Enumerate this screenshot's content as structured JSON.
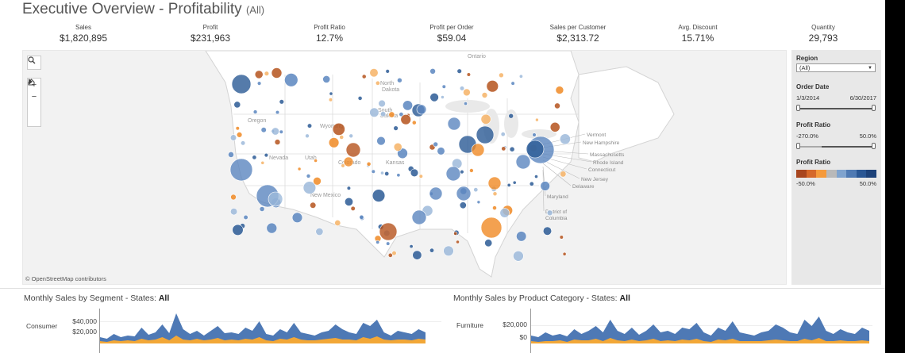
{
  "header": {
    "title": "Executive Overview - Profitability",
    "filter_tag": "(All)"
  },
  "kpis": [
    {
      "label": "Sales",
      "value": "$1,820,895"
    },
    {
      "label": "Profit",
      "value": "$231,963"
    },
    {
      "label": "Profit Ratio",
      "value": "12.7%"
    },
    {
      "label": "Profit per Order",
      "value": "$59.04"
    },
    {
      "label": "Sales per Customer",
      "value": "$2,313.72"
    },
    {
      "label": "Avg. Discount",
      "value": "15.71%"
    },
    {
      "label": "Quantity",
      "value": "29,793"
    }
  ],
  "map": {
    "attribution": "© OpenStreetMap contributors",
    "controls": [
      "search-icon",
      "zoom-in-icon",
      "zoom-out-icon",
      "home-icon",
      "play-icon"
    ],
    "state_labels": [
      "North Dakota",
      "South Dakota",
      "Oregon",
      "Wyoming",
      "Nevada",
      "Utah",
      "Colorado",
      "Kansas",
      "New Mexico"
    ],
    "region_labels": [
      "Ontario"
    ],
    "callout_labels": [
      "Vermont",
      "New Hampshire",
      "Massachusetts",
      "Rhode Island",
      "Connecticut",
      "New Jersey",
      "Delaware",
      "Maryland",
      "District of Columbia"
    ],
    "colors": {
      "dark_blue": "#2b5a95",
      "mid_blue": "#5b86bf",
      "light_blue": "#9ebadb",
      "dark_orange": "#b5531d",
      "orange": "#f08a24",
      "light_orange": "#f6b366"
    }
  },
  "filters": {
    "region": {
      "label": "Region",
      "selected": "(All)"
    },
    "order_date": {
      "label": "Order Date",
      "start": "1/3/2014",
      "end": "6/30/2017"
    },
    "profit_ratio": {
      "label": "Profit Ratio",
      "min": "-270.0%",
      "max": "50.0%"
    },
    "legend": {
      "label": "Profit Ratio",
      "min": "-50.0%",
      "max": "50.0%",
      "colors": [
        "#a8461f",
        "#d5682a",
        "#f59a3b",
        "#b9b9b9",
        "#7fa3ce",
        "#4f7ab3",
        "#2a5794",
        "#1d4279"
      ]
    }
  },
  "segment_chart": {
    "title": "Monthly Sales by Segment - States:",
    "title_filter": "All",
    "segment": "Consumer",
    "y_ticks": [
      "$40,000",
      "$20,000"
    ]
  },
  "category_chart": {
    "title": "Monthly Sales by Product Category - States:",
    "title_filter": "All",
    "category": "Furniture",
    "y_ticks": [
      "$20,000",
      "$0"
    ]
  }
}
